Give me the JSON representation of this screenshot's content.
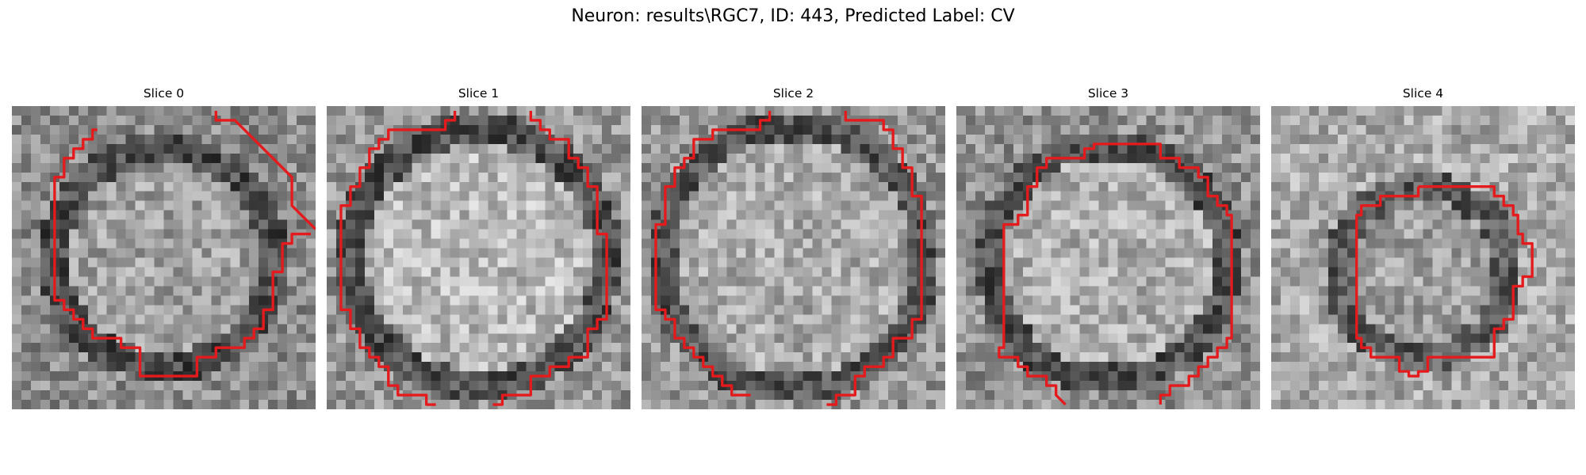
{
  "figure": {
    "title": "Neuron: results\\RGC7, ID: 443, Predicted Label: CV"
  },
  "panels": [
    {
      "title": "Slice 0",
      "roi_color": "#e41a1c",
      "image": "grayscale-cell-patch"
    },
    {
      "title": "Slice 1",
      "roi_color": "#e41a1c",
      "image": "grayscale-cell-patch"
    },
    {
      "title": "Slice 2",
      "roi_color": "#e41a1c",
      "image": "grayscale-cell-patch"
    },
    {
      "title": "Slice 3",
      "roi_color": "#e41a1c",
      "image": "grayscale-cell-patch"
    },
    {
      "title": "Slice 4",
      "roi_color": "#e41a1c",
      "image": "grayscale-cell-patch"
    }
  ]
}
